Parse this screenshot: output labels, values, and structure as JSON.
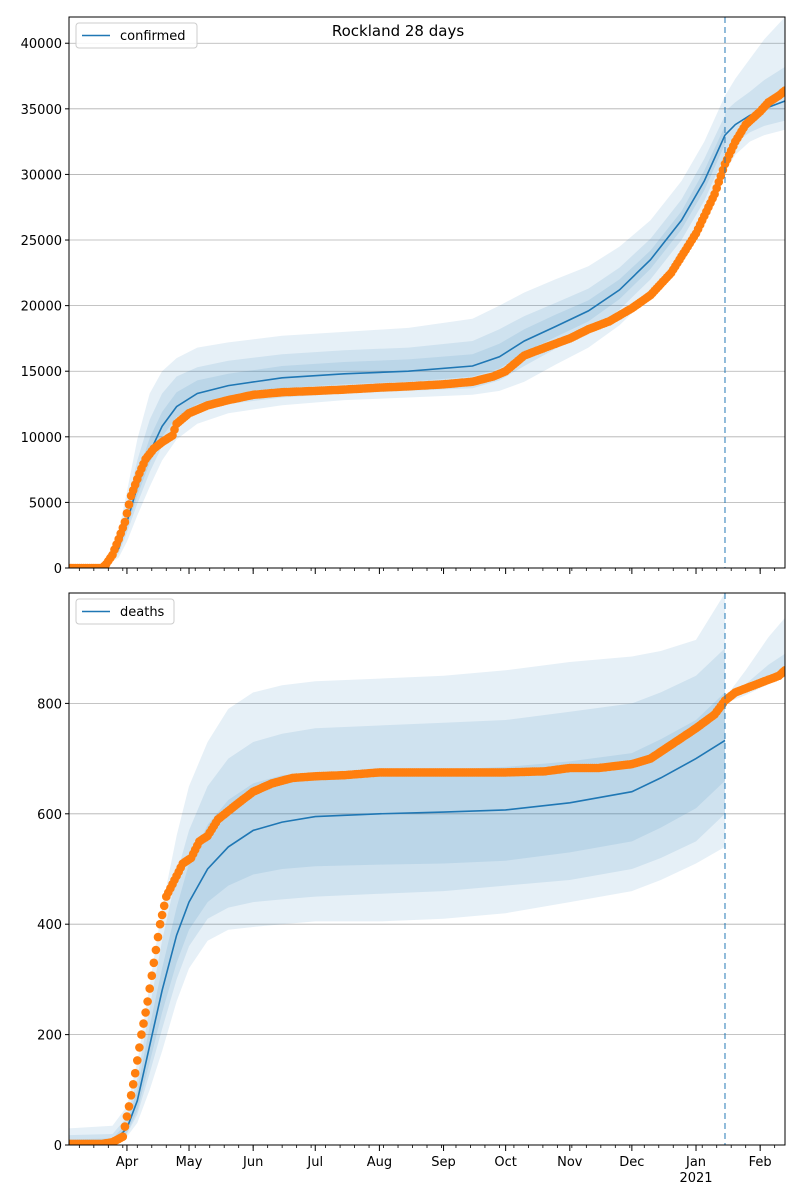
{
  "title": "Rockland 28 days",
  "colors": {
    "model_line": "#1f77b4",
    "band": "#1f77b4",
    "observed": "#ff7f0e",
    "vline": "#1f77b4",
    "grid": "#b0b0b0"
  },
  "chart_data": [
    {
      "type": "line",
      "legend": "confirmed",
      "legend_loc": "upper-left",
      "x_range": [
        "2020-03-04",
        "2021-02-13"
      ],
      "ylim": [
        0,
        42000
      ],
      "y_ticks": [
        0,
        5000,
        10000,
        15000,
        20000,
        25000,
        30000,
        35000,
        40000
      ],
      "x_ticks": [],
      "grid": "y",
      "forecast_start": "2021-01-15",
      "model": {
        "x": [
          "2020-03-04",
          "2020-03-20",
          "2020-03-28",
          "2020-04-01",
          "2020-04-06",
          "2020-04-12",
          "2020-04-18",
          "2020-04-25",
          "2020-05-05",
          "2020-05-20",
          "2020-06-15",
          "2020-07-15",
          "2020-08-15",
          "2020-09-15",
          "2020-09-28",
          "2020-10-10",
          "2020-10-25",
          "2020-11-10",
          "2020-11-25",
          "2020-12-10",
          "2020-12-25",
          "2021-01-05",
          "2021-01-15"
        ],
        "y": [
          0,
          0,
          1500,
          3500,
          6200,
          8800,
          10800,
          12300,
          13300,
          13900,
          14500,
          14800,
          15000,
          15400,
          16100,
          17300,
          18400,
          19600,
          21200,
          23500,
          26500,
          29500,
          33000
        ]
      },
      "bands": [
        {
          "x": [
            "2020-03-04",
            "2020-03-20",
            "2020-03-28",
            "2020-04-01",
            "2020-04-06",
            "2020-04-12",
            "2020-04-18",
            "2020-04-25",
            "2020-05-05",
            "2020-05-20",
            "2020-06-15",
            "2020-07-15",
            "2020-08-15",
            "2020-09-15",
            "2020-09-28",
            "2020-10-10",
            "2020-10-25",
            "2020-11-10",
            "2020-11-25",
            "2020-12-10",
            "2020-12-25",
            "2021-01-05",
            "2021-01-15"
          ],
          "upper": [
            0,
            0,
            2800,
            5800,
            9800,
            13300,
            15000,
            16000,
            16800,
            17200,
            17700,
            18000,
            18300,
            19000,
            20000,
            21000,
            22000,
            23000,
            24500,
            26500,
            29500,
            32500,
            36000
          ],
          "lower": [
            0,
            0,
            800,
            2000,
            4000,
            6200,
            8200,
            9800,
            11000,
            11800,
            12400,
            12800,
            13000,
            13200,
            13500,
            14200,
            15500,
            16800,
            18500,
            20800,
            23800,
            26800,
            30000
          ]
        },
        {
          "x": [
            "2020-03-04",
            "2020-03-20",
            "2020-03-28",
            "2020-04-01",
            "2020-04-06",
            "2020-04-12",
            "2020-04-18",
            "2020-04-25",
            "2020-05-05",
            "2020-05-20",
            "2020-06-15",
            "2020-07-15",
            "2020-08-15",
            "2020-09-15",
            "2020-09-28",
            "2020-10-10",
            "2020-10-25",
            "2020-11-10",
            "2020-11-25",
            "2020-12-10",
            "2020-12-25",
            "2021-01-05",
            "2021-01-15"
          ],
          "upper": [
            0,
            0,
            2200,
            4800,
            8200,
            11300,
            13300,
            14600,
            15300,
            15800,
            16300,
            16600,
            16800,
            17300,
            18200,
            19200,
            20200,
            21300,
            22900,
            25100,
            28100,
            31200,
            34500
          ],
          "lower": [
            0,
            0,
            1100,
            2700,
            4900,
            7300,
            9300,
            10800,
            11900,
            12500,
            13000,
            13300,
            13500,
            13700,
            14300,
            15400,
            16700,
            17900,
            19700,
            22000,
            25000,
            28000,
            31500
          ]
        },
        {
          "x": [
            "2020-03-04",
            "2020-03-20",
            "2020-03-28",
            "2020-04-01",
            "2020-04-06",
            "2020-04-12",
            "2020-04-18",
            "2020-04-25",
            "2020-05-05",
            "2020-05-20",
            "2020-06-15",
            "2020-07-15",
            "2020-08-15",
            "2020-09-15",
            "2020-09-28",
            "2020-10-10",
            "2020-10-25",
            "2020-11-10",
            "2020-11-25",
            "2020-12-10",
            "2020-12-25",
            "2021-01-05",
            "2021-01-15"
          ],
          "upper": [
            0,
            0,
            1800,
            4100,
            7100,
            9900,
            11900,
            13400,
            14300,
            14800,
            15400,
            15700,
            15900,
            16300,
            17100,
            18200,
            19300,
            20400,
            22000,
            24200,
            27200,
            30300,
            33700
          ],
          "lower": [
            0,
            0,
            1300,
            3000,
            5500,
            8000,
            10000,
            11500,
            12500,
            13100,
            13700,
            14000,
            14200,
            14600,
            15200,
            16400,
            17600,
            18800,
            20500,
            22800,
            25800,
            28800,
            32300
          ]
        }
      ],
      "forecast_model": {
        "x": [
          "2021-01-15",
          "2021-01-20",
          "2021-01-27",
          "2021-02-03",
          "2021-02-13"
        ],
        "y": [
          33000,
          33800,
          34500,
          35000,
          35600
        ]
      },
      "forecast_bands": [
        {
          "x": [
            "2021-01-15",
            "2021-01-20",
            "2021-01-27",
            "2021-02-03",
            "2021-02-13"
          ],
          "upper": [
            36000,
            37300,
            38800,
            40300,
            42000
          ],
          "lower": [
            30200,
            31500,
            32500,
            33000,
            33400
          ]
        },
        {
          "x": [
            "2021-01-15",
            "2021-01-20",
            "2021-01-27",
            "2021-02-03",
            "2021-02-13"
          ],
          "upper": [
            34800,
            35500,
            36300,
            37200,
            38200
          ],
          "lower": [
            31600,
            32400,
            33200,
            33700,
            34100
          ]
        }
      ],
      "observed": {
        "x": [
          "2020-03-04",
          "2020-03-20",
          "2020-03-22",
          "2020-03-25",
          "2020-03-28",
          "2020-03-31",
          "2020-04-03",
          "2020-04-07",
          "2020-04-10",
          "2020-04-14",
          "2020-04-18",
          "2020-04-23",
          "2020-04-25",
          "2020-05-01",
          "2020-05-10",
          "2020-05-20",
          "2020-06-01",
          "2020-06-15",
          "2020-07-01",
          "2020-07-15",
          "2020-08-01",
          "2020-08-15",
          "2020-09-01",
          "2020-09-15",
          "2020-09-25",
          "2020-10-01",
          "2020-10-10",
          "2020-10-20",
          "2020-11-01",
          "2020-11-10",
          "2020-11-20",
          "2020-12-01",
          "2020-12-10",
          "2020-12-20",
          "2021-01-01",
          "2021-01-10",
          "2021-01-15",
          "2021-01-20",
          "2021-01-25",
          "2021-02-01",
          "2021-02-05",
          "2021-02-10",
          "2021-02-13"
        ],
        "y": [
          0,
          0,
          300,
          1000,
          2200,
          3500,
          5500,
          7200,
          8300,
          9100,
          9600,
          10100,
          11000,
          11800,
          12400,
          12800,
          13200,
          13400,
          13500,
          13600,
          13750,
          13850,
          14000,
          14200,
          14600,
          15000,
          16200,
          16800,
          17500,
          18200,
          18800,
          19800,
          20800,
          22500,
          25500,
          28500,
          30800,
          32500,
          33800,
          34800,
          35500,
          36000,
          36400
        ]
      }
    },
    {
      "type": "line",
      "legend": "deaths",
      "legend_loc": "upper-left",
      "x_range": [
        "2020-03-04",
        "2021-02-13"
      ],
      "ylim": [
        0,
        1000
      ],
      "y_ticks": [
        0,
        200,
        400,
        600,
        800
      ],
      "x_ticks": [
        {
          "date": "2020-04-01",
          "label": "Apr"
        },
        {
          "date": "2020-05-01",
          "label": "May"
        },
        {
          "date": "2020-06-01",
          "label": "Jun"
        },
        {
          "date": "2020-07-01",
          "label": "Jul"
        },
        {
          "date": "2020-08-01",
          "label": "Aug"
        },
        {
          "date": "2020-09-01",
          "label": "Sep"
        },
        {
          "date": "2020-10-01",
          "label": "Oct"
        },
        {
          "date": "2020-11-01",
          "label": "Nov"
        },
        {
          "date": "2020-12-01",
          "label": "Dec"
        },
        {
          "date": "2021-01-01",
          "label": "Jan",
          "sublabel": "2021"
        },
        {
          "date": "2021-02-01",
          "label": "Feb"
        }
      ],
      "grid": "y",
      "forecast_start": "2021-01-15",
      "model": {
        "x": [
          "2020-03-04",
          "2020-03-25",
          "2020-04-01",
          "2020-04-06",
          "2020-04-12",
          "2020-04-18",
          "2020-04-25",
          "2020-05-01",
          "2020-05-10",
          "2020-05-20",
          "2020-06-01",
          "2020-06-15",
          "2020-07-01",
          "2020-08-01",
          "2020-09-01",
          "2020-10-01",
          "2020-11-01",
          "2020-12-01",
          "2020-12-15",
          "2021-01-01",
          "2021-01-15"
        ],
        "y": [
          0,
          5,
          30,
          80,
          180,
          280,
          380,
          440,
          500,
          540,
          570,
          585,
          595,
          600,
          603,
          607,
          620,
          640,
          665,
          700,
          733
        ]
      },
      "bands": [
        {
          "x": [
            "2020-03-04",
            "2020-03-25",
            "2020-04-01",
            "2020-04-06",
            "2020-04-12",
            "2020-04-18",
            "2020-04-25",
            "2020-05-01",
            "2020-05-10",
            "2020-05-20",
            "2020-06-01",
            "2020-06-15",
            "2020-07-01",
            "2020-08-01",
            "2020-09-01",
            "2020-10-01",
            "2020-11-01",
            "2020-12-01",
            "2020-12-15",
            "2021-01-01",
            "2021-01-15"
          ],
          "upper": [
            30,
            35,
            70,
            150,
            290,
            430,
            560,
            650,
            730,
            790,
            820,
            833,
            840,
            845,
            850,
            860,
            875,
            885,
            895,
            915,
            1000
          ],
          "lower": [
            0,
            0,
            15,
            40,
            100,
            170,
            260,
            320,
            370,
            390,
            395,
            400,
            405,
            405,
            410,
            420,
            440,
            460,
            480,
            510,
            540
          ]
        },
        {
          "x": [
            "2020-03-04",
            "2020-03-25",
            "2020-04-01",
            "2020-04-06",
            "2020-04-12",
            "2020-04-18",
            "2020-04-25",
            "2020-05-01",
            "2020-05-10",
            "2020-05-20",
            "2020-06-01",
            "2020-06-15",
            "2020-07-01",
            "2020-08-01",
            "2020-09-01",
            "2020-10-01",
            "2020-11-01",
            "2020-12-01",
            "2020-12-15",
            "2021-01-01",
            "2021-01-15"
          ],
          "upper": [
            18,
            20,
            50,
            120,
            250,
            370,
            490,
            570,
            650,
            700,
            730,
            745,
            755,
            760,
            765,
            770,
            785,
            800,
            820,
            850,
            900
          ],
          "lower": [
            0,
            0,
            20,
            55,
            130,
            210,
            300,
            360,
            410,
            430,
            440,
            445,
            450,
            455,
            460,
            470,
            480,
            500,
            520,
            550,
            600
          ]
        },
        {
          "x": [
            "2020-03-04",
            "2020-03-25",
            "2020-04-01",
            "2020-04-06",
            "2020-04-12",
            "2020-04-18",
            "2020-04-25",
            "2020-05-01",
            "2020-05-10",
            "2020-05-20",
            "2020-06-01",
            "2020-06-15",
            "2020-07-01",
            "2020-08-01",
            "2020-09-01",
            "2020-10-01",
            "2020-11-01",
            "2020-12-01",
            "2020-12-15",
            "2021-01-01",
            "2021-01-15"
          ],
          "upper": [
            10,
            12,
            40,
            100,
            215,
            320,
            430,
            510,
            580,
            625,
            655,
            670,
            675,
            678,
            680,
            685,
            695,
            710,
            735,
            770,
            820
          ],
          "lower": [
            0,
            0,
            22,
            62,
            150,
            240,
            330,
            390,
            440,
            470,
            490,
            500,
            505,
            508,
            510,
            515,
            530,
            550,
            575,
            610,
            660
          ]
        }
      ],
      "forecast_model": {
        "x": [],
        "y": []
      },
      "forecast_bands": [
        {
          "x": [
            "2021-01-15",
            "2021-01-25",
            "2021-02-05",
            "2021-02-13"
          ],
          "upper": [
            810,
            860,
            920,
            955
          ],
          "lower": [
            800,
            815,
            835,
            850
          ]
        },
        {
          "x": [
            "2021-01-15",
            "2021-01-25",
            "2021-02-05",
            "2021-02-13"
          ],
          "upper": [
            808,
            835,
            870,
            890
          ],
          "lower": [
            803,
            822,
            845,
            858
          ]
        }
      ],
      "observed": {
        "x": [
          "2020-03-04",
          "2020-03-20",
          "2020-03-25",
          "2020-03-30",
          "2020-04-02",
          "2020-04-05",
          "2020-04-08",
          "2020-04-11",
          "2020-04-14",
          "2020-04-17",
          "2020-04-20",
          "2020-04-24",
          "2020-04-28",
          "2020-05-02",
          "2020-05-06",
          "2020-05-10",
          "2020-05-15",
          "2020-05-20",
          "2020-05-25",
          "2020-06-01",
          "2020-06-10",
          "2020-06-20",
          "2020-07-01",
          "2020-07-15",
          "2020-08-01",
          "2020-09-01",
          "2020-10-01",
          "2020-10-20",
          "2020-11-01",
          "2020-11-15",
          "2020-12-01",
          "2020-12-10",
          "2020-12-20",
          "2021-01-01",
          "2021-01-10",
          "2021-01-15",
          "2021-01-20",
          "2021-01-27",
          "2021-02-03",
          "2021-02-10",
          "2021-02-13"
        ],
        "y": [
          2,
          2,
          5,
          15,
          70,
          130,
          200,
          260,
          330,
          400,
          450,
          480,
          510,
          520,
          550,
          560,
          590,
          605,
          620,
          640,
          655,
          665,
          668,
          670,
          675,
          675,
          675,
          677,
          683,
          683,
          690,
          700,
          725,
          755,
          780,
          805,
          820,
          830,
          840,
          850,
          860
        ]
      }
    }
  ]
}
